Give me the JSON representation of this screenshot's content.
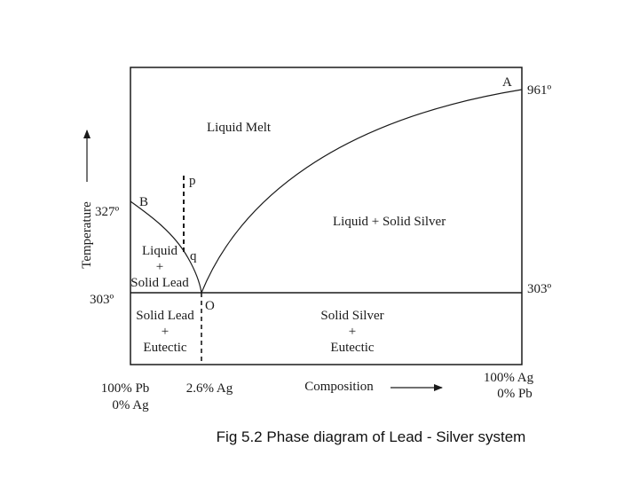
{
  "diagram": {
    "points": {
      "A": "A",
      "B": "B",
      "O": "O",
      "p": "p",
      "q": "q"
    },
    "temperatures": {
      "silver_melting": "961º",
      "lead_melting": "327º",
      "eutectic_left": "303º",
      "eutectic_right": "303º"
    },
    "regions": {
      "liquid_melt": "Liquid Melt",
      "liquid_solid_silver": "Liquid + Solid Silver",
      "liquid_solid_lead": [
        "Liquid",
        "+",
        "Solid Lead"
      ],
      "solid_lead_eutectic": [
        "Solid Lead",
        "+",
        "Eutectic"
      ],
      "solid_silver_eutectic": [
        "Solid Silver",
        "+",
        "Eutectic"
      ]
    },
    "axes": {
      "y_label": "Temperature",
      "x_label": "Composition",
      "left_composition": [
        "100% Pb",
        "0% Ag"
      ],
      "eutectic_composition": "2.6% Ag",
      "right_composition": [
        "100% Ag",
        "0% Pb"
      ]
    },
    "colors": {
      "line": "#1a1a1a",
      "text": "#1a1a1a"
    }
  },
  "caption": "Fig 5.2 Phase diagram of Lead - Silver system"
}
